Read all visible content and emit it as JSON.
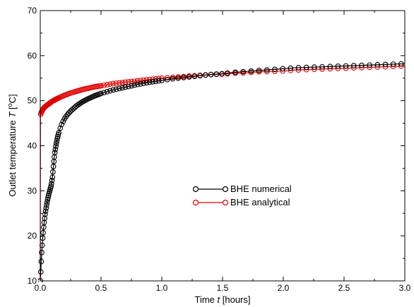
{
  "chart_data": {
    "type": "line",
    "title": "",
    "xlabel": {
      "before": "Time ",
      "var": "t",
      "after": " [hours]"
    },
    "ylabel": {
      "before": "Outlet temperature ",
      "var": "T",
      "after": " [",
      "sup": "o",
      "unit": "C]"
    },
    "xlim": [
      0,
      3.0
    ],
    "ylim": [
      10,
      70
    ],
    "x_ticks": [
      "0.0",
      "0.5",
      "1.0",
      "1.5",
      "2.0",
      "2.5",
      "3.0"
    ],
    "y_ticks": [
      "10",
      "20",
      "30",
      "40",
      "50",
      "60",
      "70"
    ],
    "grid": false,
    "legend_position": "center-right",
    "series": [
      {
        "name": "BHE numerical",
        "color": "#000000",
        "marker": "open-circle",
        "x": [
          0,
          0.005,
          0.01,
          0.02,
          0.03,
          0.04,
          0.05,
          0.06,
          0.07,
          0.08,
          0.09,
          0.1,
          0.11,
          0.12,
          0.13,
          0.14,
          0.15,
          0.16,
          0.18,
          0.2,
          0.22,
          0.25,
          0.28,
          0.3,
          0.35,
          0.4,
          0.45,
          0.5,
          0.6,
          0.7,
          0.8,
          0.9,
          1.0,
          1.1,
          1.2,
          1.3,
          1.4,
          1.5,
          1.6,
          1.7,
          1.8,
          1.9,
          2.0,
          2.1,
          2.2,
          2.3,
          2.4,
          2.5,
          2.6,
          2.7,
          2.8,
          2.9,
          3.0
        ],
        "y": [
          10,
          12.5,
          15.5,
          19.5,
          22.5,
          24.8,
          26.5,
          28,
          29.2,
          30.2,
          31.2,
          33,
          36,
          38.5,
          40.2,
          41.6,
          42.7,
          43.6,
          45,
          46,
          46.8,
          47.7,
          48.4,
          48.9,
          49.8,
          50.5,
          51.1,
          51.6,
          52.4,
          53,
          53.6,
          54.1,
          54.5,
          54.9,
          55.2,
          55.5,
          55.8,
          56,
          56.3,
          56.5,
          56.7,
          56.9,
          57.1,
          57.3,
          57.4,
          57.5,
          57.6,
          57.7,
          57.8,
          57.9,
          58,
          58.1,
          58.2
        ]
      },
      {
        "name": "BHE analytical",
        "color": "#e00000",
        "marker": "open-circle",
        "x": [
          0,
          0.002,
          0.005,
          0.01,
          0.02,
          0.03,
          0.05,
          0.07,
          0.1,
          0.15,
          0.2,
          0.25,
          0.3,
          0.35,
          0.4,
          0.45,
          0.5,
          0.6,
          0.7,
          0.8,
          0.9,
          1.0,
          1.1,
          1.2,
          1.3,
          1.4,
          1.5,
          1.6,
          1.7,
          1.8,
          1.9,
          2.0,
          2.1,
          2.2,
          2.3,
          2.4,
          2.5,
          2.6,
          2.7,
          2.8,
          2.9,
          3.0
        ],
        "y": [
          10,
          46.8,
          47.1,
          47.5,
          48,
          48.4,
          48.9,
          49.3,
          49.9,
          50.6,
          51.2,
          51.7,
          52.1,
          52.5,
          52.8,
          53.1,
          53.3,
          53.8,
          54.1,
          54.4,
          54.7,
          55,
          55.2,
          55.4,
          55.6,
          55.8,
          55.9,
          56.1,
          56.2,
          56.4,
          56.5,
          56.6,
          56.8,
          56.9,
          57,
          57.1,
          57.2,
          57.3,
          57.4,
          57.5,
          57.6,
          57.7
        ]
      }
    ]
  }
}
